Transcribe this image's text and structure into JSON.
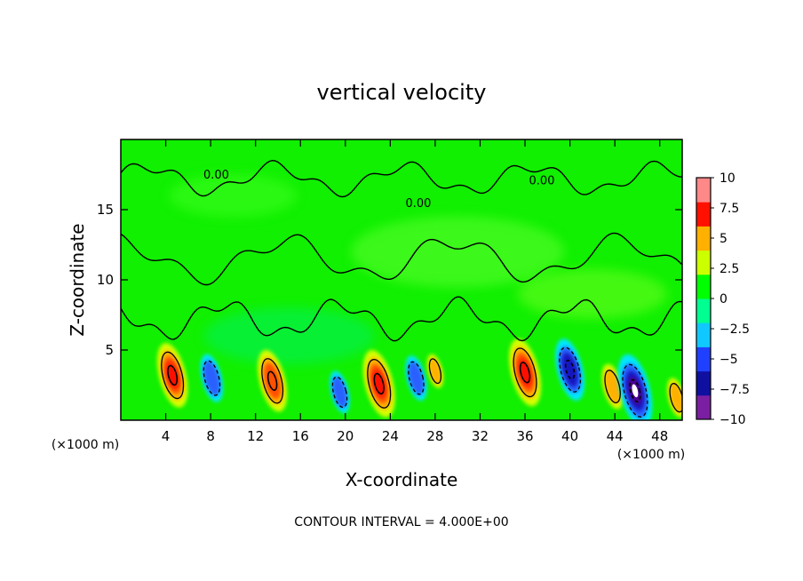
{
  "chart_data": {
    "type": "heatmap",
    "title": "vertical velocity",
    "xlabel": "X-coordinate",
    "ylabel": "Z-coordinate",
    "x_unit_left": "(×1000 m)",
    "x_unit_right": "(×1000 m)",
    "footer": "CONTOUR INTERVAL = 4.000E+00",
    "xlim": [
      0,
      50
    ],
    "ylim": [
      0,
      20
    ],
    "x_ticks": [
      4,
      8,
      12,
      16,
      20,
      24,
      28,
      32,
      36,
      40,
      44,
      48
    ],
    "x_tick_labels": [
      "4",
      "8",
      "12",
      "16",
      "20",
      "24",
      "28",
      "32",
      "36",
      "40",
      "44",
      "48"
    ],
    "y_ticks": [
      5,
      10,
      15
    ],
    "y_tick_labels": [
      "5",
      "10",
      "15"
    ],
    "contour_labels": [
      {
        "text": "0.00",
        "x": 8.5,
        "y": 17.2
      },
      {
        "text": "0.00",
        "x": 37.5,
        "y": 16.8
      },
      {
        "text": "0.00",
        "x": 26.5,
        "y": 15.2
      }
    ],
    "colorbar": {
      "min": -10,
      "max": 10,
      "ticks": [
        10,
        7.5,
        5,
        2.5,
        0,
        -2.5,
        -5,
        -7.5,
        -10
      ],
      "tick_labels": [
        "10",
        "7.5",
        "5",
        "2.5",
        "0",
        "−2.5",
        "−5",
        "−7.5",
        "−10"
      ],
      "colors": [
        "#7b1fa2",
        "#1010a0",
        "#2040ff",
        "#10c8ff",
        "#00ff90",
        "#00ff00",
        "#ccff00",
        "#ffb000",
        "#ff1000",
        "#ff8888"
      ]
    },
    "features": [
      {
        "kind": "updraft",
        "x": 4.6,
        "z": 3.2,
        "peak": 8.5
      },
      {
        "kind": "downdraft",
        "x": 8.1,
        "z": 3.0,
        "peak": -5.5
      },
      {
        "kind": "updraft",
        "x": 13.5,
        "z": 2.8,
        "peak": 8.0
      },
      {
        "kind": "downdraft",
        "x": 19.5,
        "z": 2.0,
        "peak": -4.5
      },
      {
        "kind": "updraft",
        "x": 23.0,
        "z": 2.6,
        "peak": 9.0
      },
      {
        "kind": "downdraft",
        "x": 26.3,
        "z": 3.0,
        "peak": -5.0
      },
      {
        "kind": "updraft",
        "x": 28.0,
        "z": 3.5,
        "peak": 3.0
      },
      {
        "kind": "updraft",
        "x": 36.0,
        "z": 3.4,
        "peak": 9.0
      },
      {
        "kind": "downdraft",
        "x": 40.0,
        "z": 3.6,
        "peak": -8.0
      },
      {
        "kind": "updraft",
        "x": 43.8,
        "z": 2.4,
        "peak": 5.0
      },
      {
        "kind": "downdraft",
        "x": 45.8,
        "z": 2.1,
        "peak": -10.0
      },
      {
        "kind": "updraft",
        "x": 49.5,
        "z": 1.6,
        "peak": 4.0
      }
    ]
  }
}
